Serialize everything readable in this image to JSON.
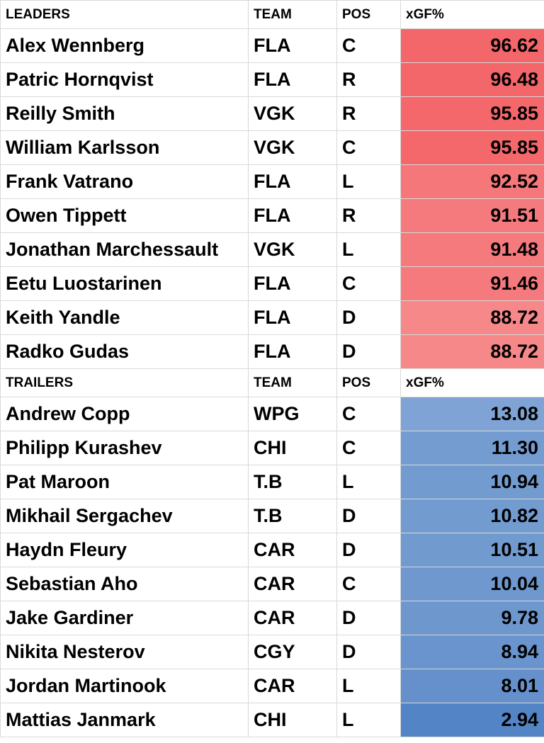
{
  "sections": [
    {
      "header": [
        "LEADERS",
        "TEAM",
        "POS",
        "xGF%"
      ],
      "rows": [
        [
          "Alex Wennberg",
          "FLA",
          "C",
          "96.62"
        ],
        [
          "Patric Hornqvist",
          "FLA",
          "R",
          "96.48"
        ],
        [
          "Reilly Smith",
          "VGK",
          "R",
          "95.85"
        ],
        [
          "William Karlsson",
          "VGK",
          "C",
          "95.85"
        ],
        [
          "Frank Vatrano",
          "FLA",
          "L",
          "92.52"
        ],
        [
          "Owen Tippett",
          "FLA",
          "R",
          "91.51"
        ],
        [
          "Jonathan Marchessault",
          "VGK",
          "L",
          "91.48"
        ],
        [
          "Eetu Luostarinen",
          "FLA",
          "C",
          "91.46"
        ],
        [
          "Keith Yandle",
          "FLA",
          "D",
          "88.72"
        ],
        [
          "Radko Gudas",
          "FLA",
          "D",
          "88.72"
        ]
      ],
      "colors": [
        "#f3666a",
        "#f3676b",
        "#f4686c",
        "#f4686c",
        "#f5777a",
        "#f57a7d",
        "#f57a7d",
        "#f57a7d",
        "#f6888a",
        "#f6888a"
      ]
    },
    {
      "header": [
        "TRAILERS",
        "TEAM",
        "POS",
        "xGF%"
      ],
      "rows": [
        [
          "Andrew Copp",
          "WPG",
          "C",
          "13.08"
        ],
        [
          "Philipp Kurashev",
          "CHI",
          "C",
          "11.30"
        ],
        [
          "Pat Maroon",
          "T.B",
          "L",
          "10.94"
        ],
        [
          "Mikhail Sergachev",
          "T.B",
          "D",
          "10.82"
        ],
        [
          "Haydn Fleury",
          "CAR",
          "D",
          "10.51"
        ],
        [
          "Sebastian Aho",
          "CAR",
          "C",
          "10.04"
        ],
        [
          "Jake Gardiner",
          "CAR",
          "D",
          "9.78"
        ],
        [
          "Nikita Nesterov",
          "CGY",
          "D",
          "8.94"
        ],
        [
          "Jordan Martinook",
          "CAR",
          "L",
          "8.01"
        ],
        [
          "Mattias Janmark",
          "CHI",
          "L",
          "2.94"
        ]
      ],
      "colors": [
        "#7ea3d4",
        "#749cd1",
        "#729bd0",
        "#729bd0",
        "#719acf",
        "#6f98cf",
        "#6e97ce",
        "#6a94cd",
        "#6690cb",
        "#5384c6"
      ]
    }
  ]
}
